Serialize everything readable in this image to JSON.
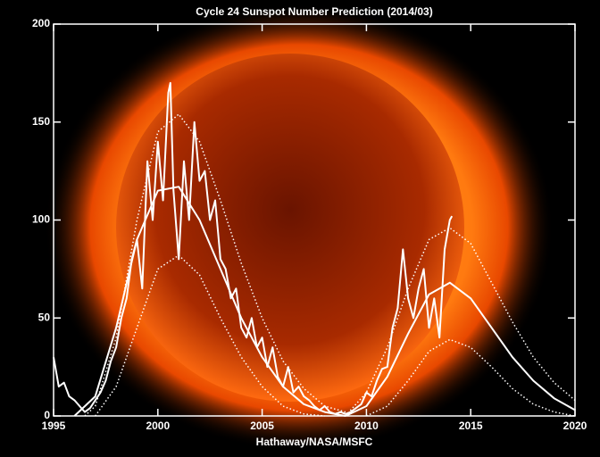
{
  "chart_data": {
    "type": "line",
    "title": "Cycle 24 Sunspot Number Prediction (2014/03)",
    "x_label": "Hathaway/NASA/MSFC",
    "xlim": [
      1995,
      2020
    ],
    "xticks": [
      1995,
      2000,
      2005,
      2010,
      2015,
      2020
    ],
    "ylim": [
      0,
      200
    ],
    "yticks": [
      0,
      50,
      100,
      150,
      200
    ],
    "series": [
      {
        "color": "#ffffff",
        "style": "solid",
        "x": [
          1995.0,
          1995.25,
          1995.5,
          1995.75,
          1996.0,
          1996.25,
          1996.5,
          1996.75,
          1997.0,
          1997.25,
          1997.5,
          1997.75,
          1998.0,
          1998.25,
          1998.5,
          1998.75,
          1999.0,
          1999.25,
          1999.5,
          1999.75,
          2000.0,
          2000.25,
          2000.5,
          2000.6,
          2000.75,
          2001.0,
          2001.25,
          2001.5,
          2001.75,
          2002.0,
          2002.25,
          2002.5,
          2002.75,
          2003.0,
          2003.25,
          2003.5,
          2003.75,
          2004.0,
          2004.25,
          2004.5,
          2004.75,
          2005.0,
          2005.25,
          2005.5,
          2005.75,
          2006.0,
          2006.25,
          2006.5,
          2006.75,
          2007.0,
          2007.25,
          2007.5,
          2007.75,
          2008.0,
          2008.25,
          2008.5,
          2008.75,
          2009.0,
          2009.25,
          2009.5,
          2009.75,
          2010.0,
          2010.25,
          2010.5,
          2010.75,
          2011.0,
          2011.25,
          2011.5,
          2011.75,
          2012.0,
          2012.25,
          2012.5,
          2012.75,
          2013.0,
          2013.25,
          2013.5,
          2013.75,
          2014.0,
          2014.1
        ],
        "values": [
          30,
          15,
          17,
          10,
          8,
          5,
          2,
          4,
          8,
          12,
          18,
          28,
          35,
          50,
          60,
          80,
          90,
          65,
          130,
          100,
          140,
          110,
          165,
          170,
          115,
          80,
          130,
          100,
          150,
          120,
          125,
          100,
          110,
          80,
          75,
          60,
          65,
          45,
          40,
          50,
          35,
          40,
          25,
          35,
          20,
          15,
          25,
          12,
          15,
          10,
          8,
          5,
          3,
          5,
          2,
          1,
          2,
          1,
          2,
          4,
          6,
          12,
          10,
          18,
          24,
          25,
          45,
          55,
          85,
          60,
          50,
          65,
          75,
          45,
          60,
          40,
          85,
          100,
          102
        ]
      },
      {
        "color": "#ffffff",
        "style": "solid",
        "x": [
          1996,
          1997,
          1998,
          1999,
          2000,
          2001,
          2002,
          2003,
          2004,
          2005,
          2006,
          2007,
          2008,
          2009
        ],
        "values": [
          0,
          10,
          45,
          90,
          115,
          117,
          100,
          75,
          50,
          30,
          15,
          6,
          2,
          0
        ]
      },
      {
        "color": "#ffffff",
        "style": "dotted",
        "x": [
          1996.5,
          1997,
          1998,
          1999,
          2000,
          2001,
          2002,
          2003,
          2004,
          2005,
          2006,
          2007,
          2008,
          2009
        ],
        "values": [
          0,
          5,
          40,
          100,
          145,
          154,
          140,
          110,
          78,
          50,
          28,
          14,
          5,
          2
        ]
      },
      {
        "color": "#ffffff",
        "style": "dotted",
        "x": [
          1997,
          1998,
          1999,
          2000,
          2001,
          2002,
          2003,
          2004,
          2005,
          2006,
          2007,
          2008
        ],
        "values": [
          0,
          15,
          45,
          75,
          82,
          72,
          50,
          30,
          15,
          5,
          1,
          0
        ]
      },
      {
        "color": "#ffffff",
        "style": "solid",
        "x": [
          2009,
          2010,
          2011,
          2012,
          2013,
          2014,
          2015,
          2016,
          2017,
          2018,
          2019,
          2020
        ],
        "values": [
          0,
          5,
          20,
          42,
          62,
          68,
          60,
          45,
          30,
          18,
          9,
          3
        ]
      },
      {
        "color": "#ffffff",
        "style": "dotted",
        "x": [
          2009,
          2010,
          2011,
          2012,
          2013,
          2014,
          2015,
          2016,
          2017,
          2018,
          2019,
          2020
        ],
        "values": [
          0,
          12,
          35,
          65,
          90,
          96,
          88,
          68,
          48,
          30,
          17,
          8
        ]
      },
      {
        "color": "#ffffff",
        "style": "dotted",
        "x": [
          2010,
          2011,
          2012,
          2013,
          2014,
          2015,
          2016,
          2017,
          2018,
          2019,
          2020
        ],
        "values": [
          0,
          5,
          18,
          33,
          39,
          35,
          25,
          14,
          6,
          2,
          0
        ]
      }
    ]
  }
}
